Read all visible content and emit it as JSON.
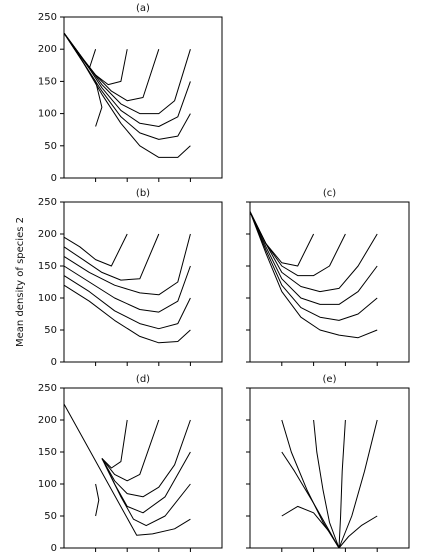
{
  "chart_data": [
    {
      "type": "line",
      "title": "(a)",
      "color": "#000000",
      "xlim": [
        0,
        5
      ],
      "xticks": [
        1,
        2,
        3,
        4
      ],
      "ylim": [
        0,
        250
      ],
      "yticks": [
        0,
        50,
        100,
        150,
        200,
        250
      ],
      "ytick_labels": true,
      "series": [
        {
          "x": [
            0,
            0.6,
            1.2,
            1.8,
            2.4,
            3.0,
            3.6,
            4.0
          ],
          "values": [
            225,
            180,
            130,
            85,
            50,
            32,
            32,
            50
          ]
        },
        {
          "x": [
            0,
            0.6,
            1.2,
            1.8,
            2.4,
            3.0,
            3.6,
            4.0
          ],
          "values": [
            225,
            180,
            135,
            95,
            70,
            60,
            65,
            100
          ]
        },
        {
          "x": [
            0,
            0.6,
            1.2,
            1.8,
            2.4,
            3.0,
            3.6,
            4.0
          ],
          "values": [
            225,
            185,
            140,
            105,
            85,
            80,
            95,
            150
          ]
        },
        {
          "x": [
            0,
            0.6,
            1.2,
            1.8,
            2.4,
            3.0,
            3.5,
            4.0
          ],
          "values": [
            225,
            185,
            145,
            115,
            100,
            100,
            120,
            200
          ]
        },
        {
          "x": [
            0,
            0.6,
            1.0,
            1.5,
            2.0,
            2.5,
            3.0
          ],
          "values": [
            225,
            185,
            160,
            135,
            120,
            125,
            200
          ]
        },
        {
          "x": [
            0,
            0.6,
            1.0,
            1.4,
            1.8,
            2.0
          ],
          "values": [
            225,
            185,
            160,
            145,
            150,
            200
          ]
        },
        {
          "x": [
            0,
            0.5,
            0.8,
            1.0
          ],
          "values": [
            225,
            190,
            170,
            200
          ]
        },
        {
          "x": [
            0,
            0.6,
            1.0,
            1.2,
            1.0
          ],
          "values": [
            225,
            180,
            150,
            110,
            80
          ]
        }
      ]
    },
    {
      "type": "line",
      "title": "(b)",
      "ylabel": "Mean density of species 2",
      "color": "#000000",
      "xlim": [
        0,
        5
      ],
      "xticks": [
        1,
        2,
        3,
        4
      ],
      "ylim": [
        0,
        250
      ],
      "yticks": [
        0,
        50,
        100,
        150,
        200,
        250
      ],
      "ytick_labels": true,
      "series": [
        {
          "x": [
            0,
            0.8,
            1.6,
            2.4,
            3.0,
            3.6,
            4.0
          ],
          "values": [
            120,
            95,
            65,
            40,
            30,
            32,
            50
          ]
        },
        {
          "x": [
            0,
            0.8,
            1.6,
            2.4,
            3.0,
            3.6,
            4.0
          ],
          "values": [
            135,
            110,
            80,
            60,
            52,
            60,
            100
          ]
        },
        {
          "x": [
            0,
            0.8,
            1.6,
            2.4,
            3.0,
            3.6,
            4.0
          ],
          "values": [
            150,
            125,
            100,
            82,
            78,
            95,
            150
          ]
        },
        {
          "x": [
            0,
            0.8,
            1.6,
            2.4,
            3.0,
            3.6,
            4.0
          ],
          "values": [
            165,
            140,
            120,
            108,
            105,
            125,
            200
          ]
        },
        {
          "x": [
            0,
            0.6,
            1.2,
            1.8,
            2.4,
            3.0
          ],
          "values": [
            180,
            160,
            140,
            128,
            130,
            200
          ]
        },
        {
          "x": [
            0,
            0.5,
            1.0,
            1.5,
            2.0
          ],
          "values": [
            195,
            180,
            160,
            150,
            200
          ]
        }
      ]
    },
    {
      "type": "line",
      "title": "(c)",
      "color": "#000000",
      "xlim": [
        0,
        5
      ],
      "xticks": [
        1,
        2,
        3,
        4
      ],
      "ylim": [
        0,
        250
      ],
      "yticks": [
        0,
        50,
        100,
        150,
        200,
        250
      ],
      "ytick_labels": false,
      "series": [
        {
          "x": [
            0,
            0.5,
            1.0,
            1.6,
            2.2,
            2.8,
            3.4,
            4.0
          ],
          "values": [
            235,
            170,
            110,
            70,
            50,
            42,
            38,
            50
          ]
        },
        {
          "x": [
            0,
            0.5,
            1.0,
            1.6,
            2.2,
            2.8,
            3.4,
            4.0
          ],
          "values": [
            235,
            175,
            120,
            85,
            70,
            65,
            75,
            100
          ]
        },
        {
          "x": [
            0,
            0.5,
            1.0,
            1.6,
            2.2,
            2.8,
            3.4,
            4.0
          ],
          "values": [
            235,
            180,
            130,
            100,
            90,
            90,
            110,
            150
          ]
        },
        {
          "x": [
            0,
            0.5,
            1.0,
            1.6,
            2.2,
            2.8,
            3.4,
            4.0
          ],
          "values": [
            235,
            185,
            140,
            118,
            110,
            115,
            150,
            200
          ]
        },
        {
          "x": [
            0,
            0.5,
            1.0,
            1.5,
            2.0,
            2.5,
            3.0
          ],
          "values": [
            235,
            185,
            150,
            135,
            135,
            150,
            200
          ]
        },
        {
          "x": [
            0,
            0.5,
            1.0,
            1.5,
            2.0
          ],
          "values": [
            235,
            185,
            155,
            150,
            200
          ]
        }
      ]
    },
    {
      "type": "line",
      "title": "(d)",
      "color": "#000000",
      "xlim": [
        0,
        5
      ],
      "xticks": [
        1,
        2,
        3,
        4
      ],
      "ylim": [
        0,
        250
      ],
      "yticks": [
        0,
        50,
        100,
        150,
        200,
        250
      ],
      "ytick_labels": true,
      "series": [
        {
          "x": [
            0,
            2.3,
            2.8,
            3.5,
            4.0
          ],
          "values": [
            225,
            20,
            22,
            30,
            45
          ]
        },
        {
          "x": [
            1.3,
            1.8,
            2.2,
            2.6,
            3.2,
            4.0
          ],
          "values": [
            130,
            80,
            45,
            35,
            50,
            100
          ]
        },
        {
          "x": [
            1.2,
            1.6,
            2.0,
            2.5,
            3.2,
            4.0
          ],
          "values": [
            140,
            100,
            65,
            55,
            80,
            150
          ]
        },
        {
          "x": [
            1.2,
            1.6,
            2.0,
            2.5,
            3.0,
            3.5,
            4.0
          ],
          "values": [
            140,
            105,
            85,
            80,
            95,
            130,
            200
          ]
        },
        {
          "x": [
            1.2,
            1.6,
            2.0,
            2.4,
            3.0
          ],
          "values": [
            140,
            115,
            105,
            115,
            200
          ]
        },
        {
          "x": [
            1.2,
            1.5,
            1.8,
            2.0
          ],
          "values": [
            140,
            125,
            135,
            200
          ]
        },
        {
          "x": [
            1.0,
            1.1,
            1.0
          ],
          "values": [
            100,
            75,
            50
          ]
        }
      ]
    },
    {
      "type": "line",
      "title": "(e)",
      "color": "#000000",
      "xlim": [
        0,
        5
      ],
      "xticks": [
        1,
        2,
        3,
        4
      ],
      "ylim": [
        0,
        250
      ],
      "yticks": [
        0,
        50,
        100,
        150,
        200,
        250
      ],
      "ytick_labels": false,
      "series": [
        {
          "x": [
            1,
            1.3,
            1.8,
            2.3,
            2.8
          ],
          "values": [
            200,
            150,
            90,
            40,
            0
          ]
        },
        {
          "x": [
            2,
            2.1,
            2.3,
            2.5,
            2.8
          ],
          "values": [
            200,
            150,
            90,
            40,
            0
          ]
        },
        {
          "x": [
            3,
            2.9,
            2.85,
            2.8
          ],
          "values": [
            200,
            120,
            50,
            0
          ]
        },
        {
          "x": [
            4,
            3.6,
            3.2,
            2.8
          ],
          "values": [
            200,
            120,
            50,
            0
          ]
        },
        {
          "x": [
            4,
            3.5,
            3.1,
            2.8
          ],
          "values": [
            50,
            35,
            18,
            0
          ]
        },
        {
          "x": [
            1,
            1.5,
            2.0,
            2.5,
            2.8
          ],
          "values": [
            50,
            65,
            55,
            25,
            0
          ]
        },
        {
          "x": [
            1.0,
            1.4,
            2.0,
            2.8
          ],
          "values": [
            150,
            120,
            70,
            0
          ]
        }
      ]
    }
  ]
}
